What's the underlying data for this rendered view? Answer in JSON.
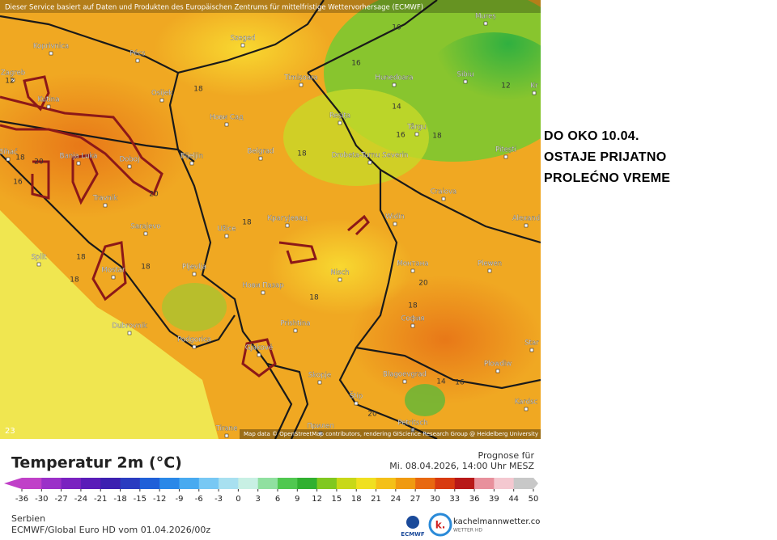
{
  "header": {
    "attribution": "Dieser Service basiert auf Daten und Produkten des Europäischen Zentrums für mittelfristige Wettervorhersage (ECMWF)"
  },
  "map": {
    "cities": [
      "Koprivnica",
      "Pécs",
      "Szeged",
      "Zagreb",
      "Osijek",
      "Kutina",
      "Нови Сад",
      "Timișoara",
      "Hunedoara",
      "Sibiu",
      "Mureș",
      "Reșița",
      "Târgu",
      "Banja Luka",
      "Doboj",
      "Bijeljin",
      "Belgrad",
      "Drobeta-Turnu Severin",
      "Pitești",
      "Bihać",
      "Travnik",
      "Craiova",
      "Sarajevo",
      "Крагујевац",
      "Užice",
      "Widin",
      "Alexand",
      "Split",
      "Mostar",
      "Pljevlja",
      "Nisch",
      "Монтана",
      "Plewen",
      "Нови Пазар",
      "Dubrovnik",
      "Podgorica",
      "Prishtina",
      "София",
      "Gjakovë",
      "Skopje",
      "Blagoevgrad",
      "Plowdiw",
      "Star",
      "Štip",
      "Kardsc",
      "Tirane",
      "Прилеп",
      "Petritsch",
      "Kr"
    ],
    "contour_labels": [
      "18",
      "16",
      "10",
      "12",
      "14",
      "16",
      "18",
      "18",
      "18",
      "20",
      "18",
      "20",
      "18",
      "18",
      "18",
      "18",
      "20",
      "16",
      "18",
      "14",
      "16",
      "20",
      "12"
    ],
    "corner_label": "23",
    "credits": "Map data © OpenStreetMap contributors, rendering GIScience Research Group @ Heidelberg University"
  },
  "annotation": {
    "lines": [
      "DO OKO 10.04.",
      "OSTAJE PRIJATNO",
      "PROLEĆNO VREME"
    ]
  },
  "legend": {
    "title": "Temperatur 2m (°C)",
    "ticks": [
      -36,
      -30,
      -27,
      -24,
      -21,
      -18,
      -15,
      -12,
      -9,
      -6,
      -3,
      0,
      3,
      6,
      9,
      12,
      15,
      18,
      21,
      24,
      27,
      30,
      33,
      36,
      39,
      44,
      50
    ],
    "colors": [
      "#c040c8",
      "#9b30c8",
      "#7a22c0",
      "#5a1cb8",
      "#3c20b0",
      "#2a3cc0",
      "#2060d8",
      "#2a88e8",
      "#48aaf0",
      "#78c8f4",
      "#a8e0f0",
      "#c8f0e4",
      "#90e0a0",
      "#50c850",
      "#30b030",
      "#80c820",
      "#c8d818",
      "#f0e020",
      "#f4c018",
      "#f09a10",
      "#e86810",
      "#d83a10",
      "#b81818",
      "#e8909c",
      "#f4c8d0",
      "#c8c8c8"
    ]
  },
  "forecast": {
    "label": "Prognose für",
    "time": "Mi. 08.04.2026, 14:00 Uhr MESZ"
  },
  "footer": {
    "region": "Serbien",
    "model": "ECMWF/Global Euro HD vom  01.04.2026/00z",
    "ecmwf": "ECMWF",
    "brand": "kachelmannwetter.com",
    "brand_sub": "WETTER HD"
  }
}
